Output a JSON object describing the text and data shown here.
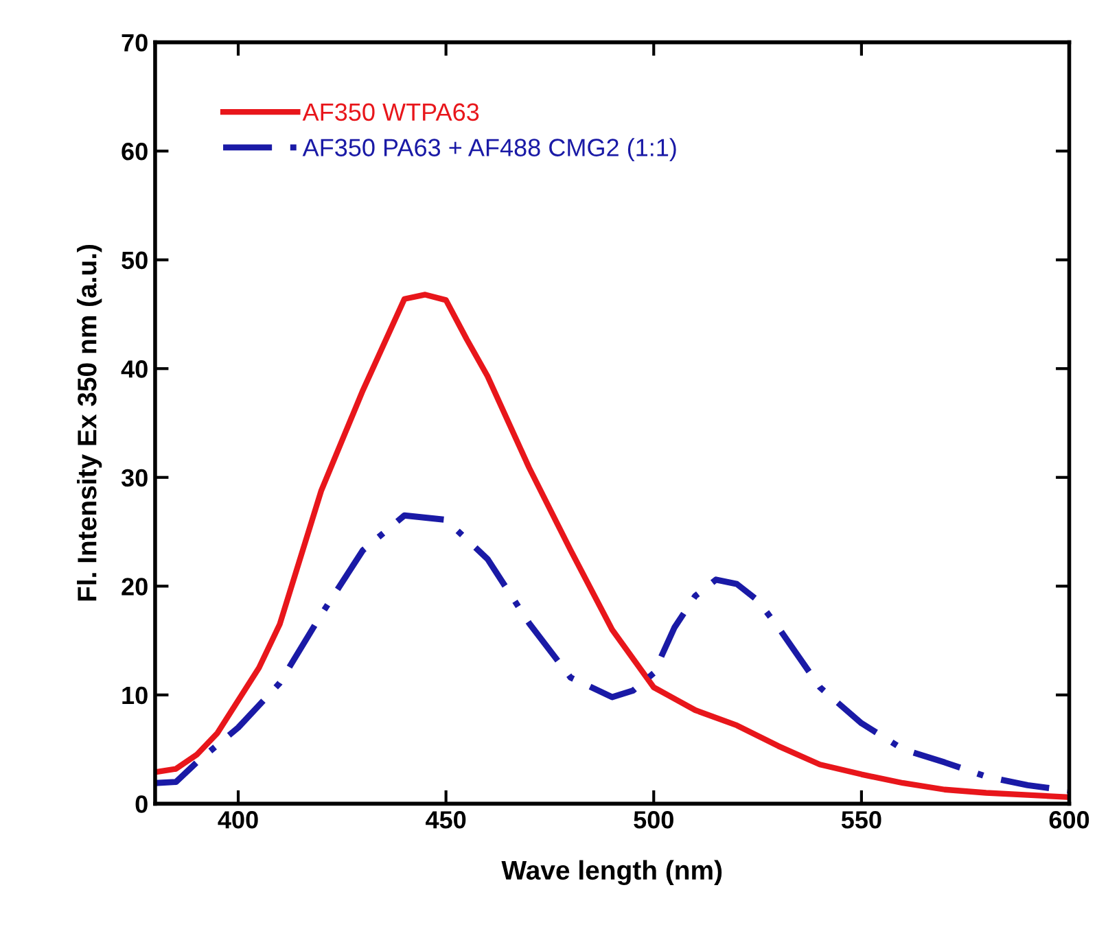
{
  "chart_data": {
    "type": "line",
    "xlabel": "Wave length (nm)",
    "ylabel": "Fl. Intensity Ex 350 nm (a.u.)",
    "xlim": [
      380,
      600
    ],
    "xticks": [
      400,
      450,
      500,
      550,
      600
    ],
    "ylim": [
      0,
      70
    ],
    "yticks": [
      0,
      10,
      20,
      30,
      40,
      50,
      60,
      70
    ],
    "grid": false,
    "legend": "top left",
    "marker": "none",
    "series": [
      {
        "name": "AF350 WTPA63",
        "color": "#e8161b",
        "line_style": "solid",
        "x": [
          380,
          385,
          390,
          395,
          400,
          405,
          410,
          420,
          430,
          440,
          445,
          450,
          455,
          460,
          470,
          480,
          490,
          500,
          510,
          520,
          530,
          540,
          550,
          560,
          570,
          580,
          590,
          600
        ],
        "values": [
          2.9,
          3.2,
          4.5,
          6.5,
          9.5,
          12.5,
          16.5,
          28.8,
          38,
          46.4,
          46.8,
          46.3,
          42.7,
          39.3,
          30.9,
          23.3,
          16,
          10.7,
          8.6,
          7.2,
          5.3,
          3.6,
          2.7,
          1.9,
          1.3,
          1.0,
          0.8,
          0.6
        ]
      },
      {
        "name": "AF350 PA63 + AF488 CMG2 (1:1)",
        "color": "#1a1aa6",
        "line_style": "dashed",
        "x": [
          380,
          385,
          390,
          400,
          410,
          420,
          430,
          440,
          450,
          460,
          470,
          480,
          490,
          495,
          500,
          505,
          510,
          515,
          520,
          525,
          530,
          540,
          550,
          560,
          570,
          580,
          590,
          600
        ],
        "values": [
          1.9,
          2.0,
          3.8,
          7.0,
          11.1,
          17.4,
          23.3,
          26.5,
          26.1,
          22.5,
          16.6,
          11.6,
          9.8,
          10.4,
          12,
          16.2,
          19.1,
          20.6,
          20.2,
          18.7,
          16.2,
          10.7,
          7.4,
          5.0,
          3.8,
          2.5,
          1.7,
          1.2
        ]
      }
    ]
  }
}
